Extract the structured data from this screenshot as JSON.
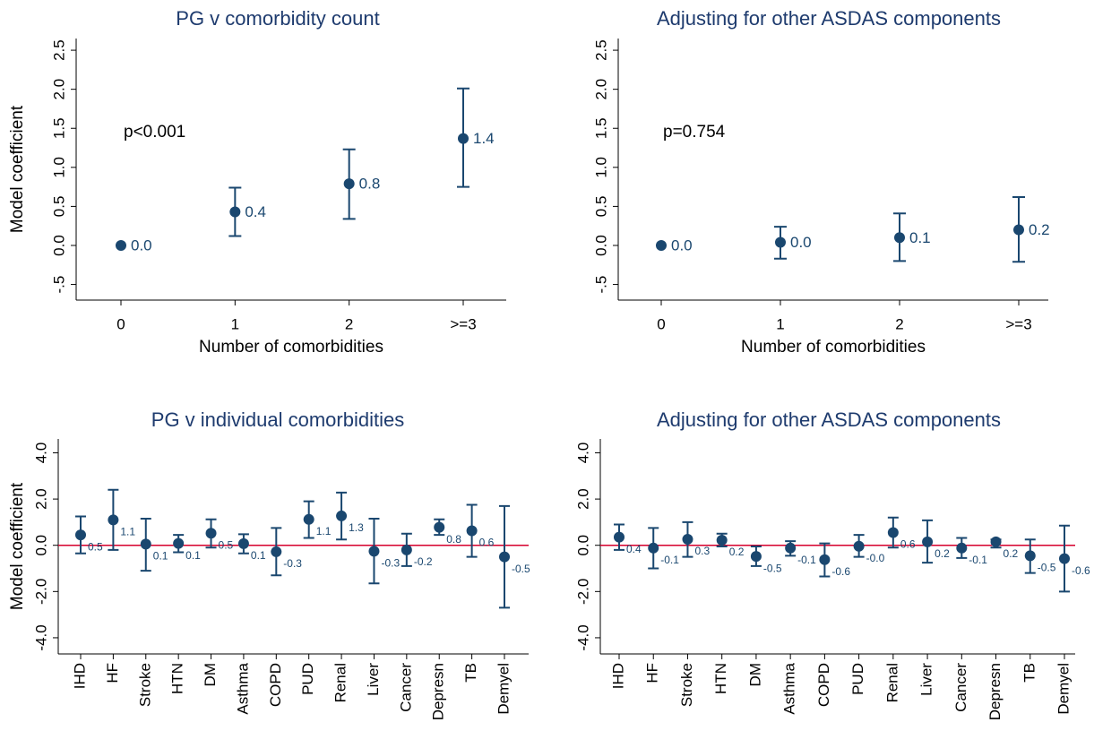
{
  "chart_data": [
    {
      "type": "errorbar",
      "title": "PG v comorbidity count",
      "x_label": "Number of comorbidities",
      "y_label": "Model coefficient",
      "annotation": "p<0.001",
      "categories": [
        "0",
        "1",
        "2",
        ">=3"
      ],
      "values": [
        0,
        0.43,
        0.79,
        1.37
      ],
      "value_labels": [
        "0.0",
        "0.4",
        "0.8",
        "1.4"
      ],
      "lower": [
        null,
        0.12,
        0.34,
        0.75
      ],
      "upper": [
        null,
        0.74,
        1.23,
        2.01
      ],
      "color": "#1a476f",
      "ylim": [
        -0.7,
        2.65
      ],
      "yticks": [
        {
          "value": -0.5,
          "label": "-.5"
        },
        {
          "value": 0,
          "label": "0.0"
        },
        {
          "value": 0.5,
          "label": "0.5"
        },
        {
          "value": 1,
          "label": "1.0"
        },
        {
          "value": 1.5,
          "label": "1.5"
        },
        {
          "value": 2,
          "label": "2.0"
        },
        {
          "value": 2.5,
          "label": "2.5"
        }
      ]
    },
    {
      "type": "errorbar",
      "title": "Adjusting for other ASDAS components",
      "x_label": "Number of comorbidities",
      "annotation": "p=0.754",
      "categories": [
        "0",
        "1",
        "2",
        ">=3"
      ],
      "values": [
        0,
        0.04,
        0.1,
        0.2
      ],
      "value_labels": [
        "0.0",
        "0.0",
        "0.1",
        "0.2"
      ],
      "lower": [
        null,
        -0.17,
        -0.2,
        -0.21
      ],
      "upper": [
        null,
        0.24,
        0.41,
        0.62
      ],
      "color": "#1a476f",
      "ylim": [
        -0.7,
        2.65
      ],
      "yticks": [
        {
          "value": -0.5,
          "label": "-.5"
        },
        {
          "value": 0,
          "label": "0.0"
        },
        {
          "value": 0.5,
          "label": "0.5"
        },
        {
          "value": 1,
          "label": "1.0"
        },
        {
          "value": 1.5,
          "label": "1.5"
        },
        {
          "value": 2,
          "label": "2.0"
        },
        {
          "value": 2.5,
          "label": "2.5"
        }
      ]
    },
    {
      "type": "errorbar",
      "title": "PG v individual comorbidities",
      "y_label": "Model coefficient",
      "categories": [
        "IHD",
        "HF",
        "Stroke",
        "HTN",
        "DM",
        "Asthma",
        "COPD",
        "PUD",
        "Renal",
        "Liver",
        "Cancer",
        "Depresn",
        "TB",
        "Demyel"
      ],
      "values": [
        0.45,
        1.1,
        0.05,
        0.08,
        0.52,
        0.07,
        -0.28,
        1.12,
        1.27,
        -0.26,
        -0.2,
        0.78,
        0.63,
        -0.5
      ],
      "value_labels": [
        "0.5",
        "1.1",
        "0.1",
        "0.1",
        "0.5",
        "0.1",
        "-0.3",
        "1.1",
        "1.3",
        "-0.3",
        "-0.2",
        "0.8",
        "0.6",
        "-0.5"
      ],
      "lower": [
        -0.35,
        -0.2,
        -1.1,
        -0.3,
        -0.1,
        -0.35,
        -1.3,
        0.32,
        0.25,
        -1.65,
        -0.9,
        0.45,
        -0.5,
        -2.7
      ],
      "upper": [
        1.25,
        2.4,
        1.15,
        0.45,
        1.12,
        0.48,
        0.75,
        1.9,
        2.28,
        1.15,
        0.5,
        1.12,
        1.75,
        1.7
      ],
      "color": "#1a476f",
      "hline": 0,
      "hline_color": "#d6002c",
      "ylim": [
        -4.7,
        4.6
      ],
      "yticks": [
        {
          "value": -4,
          "label": "-4.0"
        },
        {
          "value": -2,
          "label": "-2.0"
        },
        {
          "value": 0,
          "label": "0.0"
        },
        {
          "value": 2,
          "label": "2.0"
        },
        {
          "value": 4,
          "label": "4.0"
        }
      ]
    },
    {
      "type": "errorbar",
      "title": "Adjusting for other ASDAS components",
      "categories": [
        "IHD",
        "HF",
        "Stroke",
        "HTN",
        "DM",
        "Asthma",
        "COPD",
        "PUD",
        "Renal",
        "Liver",
        "Cancer",
        "Depresn",
        "TB",
        "Demyel"
      ],
      "values": [
        0.35,
        -0.12,
        0.26,
        0.22,
        -0.48,
        -0.12,
        -0.62,
        -0.04,
        0.55,
        0.15,
        -0.12,
        0.15,
        -0.45,
        -0.58
      ],
      "value_labels": [
        "0.4",
        "-0.1",
        "0.3",
        "0.2",
        "-0.5",
        "-0.1",
        "-0.6",
        "-0.0",
        "0.6",
        "0.2",
        "-0.1",
        "0.2",
        "-0.5",
        "-0.6"
      ],
      "lower": [
        -0.2,
        -1.0,
        -0.5,
        -0.05,
        -0.9,
        -0.45,
        -1.35,
        -0.5,
        -0.1,
        -0.75,
        -0.55,
        -0.1,
        -1.2,
        -2.0
      ],
      "upper": [
        0.9,
        0.75,
        1.0,
        0.5,
        -0.05,
        0.18,
        0.08,
        0.45,
        1.2,
        1.08,
        0.32,
        0.25,
        0.25,
        0.85
      ],
      "color": "#1a476f",
      "hline": 0,
      "hline_color": "#d6002c",
      "ylim": [
        -4.7,
        4.6
      ],
      "yticks": [
        {
          "value": -4,
          "label": "-4.0"
        },
        {
          "value": -2,
          "label": "-2.0"
        },
        {
          "value": 0,
          "label": "0.0"
        },
        {
          "value": 2,
          "label": "2.0"
        },
        {
          "value": 4,
          "label": "4.0"
        }
      ]
    }
  ]
}
